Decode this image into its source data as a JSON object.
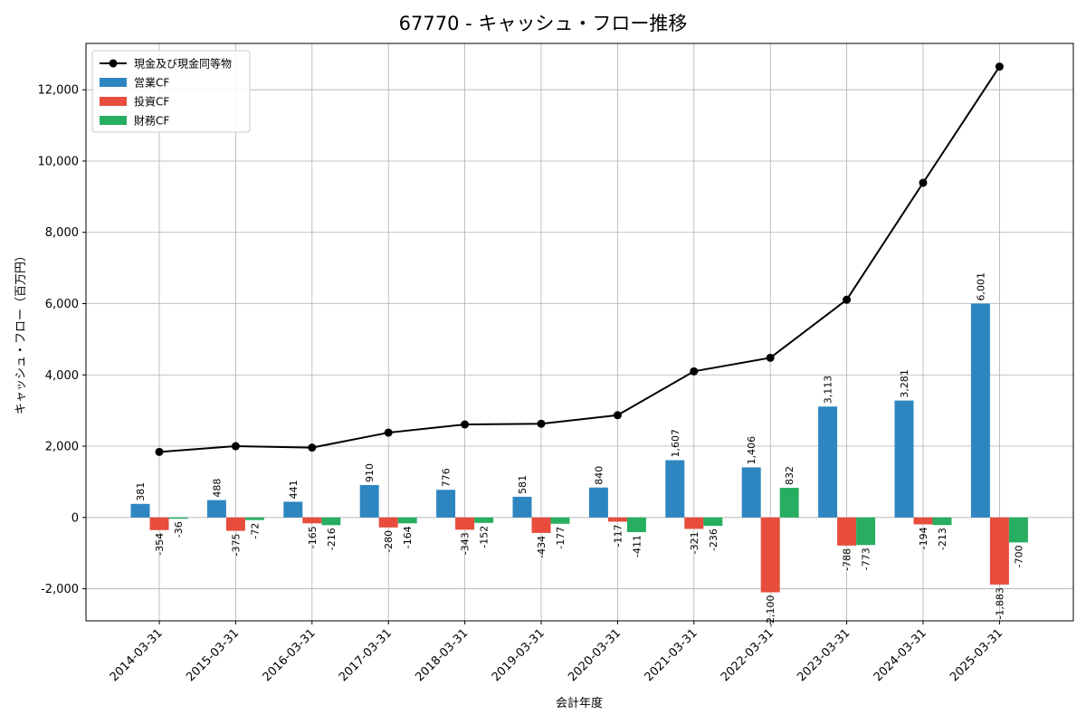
{
  "chart_data": {
    "type": "bar",
    "title": "67770 - キャッシュ・フロー推移",
    "xlabel": "会計年度",
    "ylabel": "キャッシュ・フロー（百万円）",
    "ylim": [
      -2900,
      13300
    ],
    "yticks": [
      -2000,
      0,
      2000,
      4000,
      6000,
      8000,
      10000,
      12000
    ],
    "ytick_labels": [
      "-2,000",
      "0",
      "2,000",
      "4,000",
      "6,000",
      "8,000",
      "10,000",
      "12,000"
    ],
    "grid": true,
    "legend_placement": "top-left",
    "categories": [
      "2014-03-31",
      "2015-03-31",
      "2016-03-31",
      "2017-03-31",
      "2018-03-31",
      "2019-03-31",
      "2020-03-31",
      "2021-03-31",
      "2022-03-31",
      "2023-03-31",
      "2024-03-31",
      "2025-03-31"
    ],
    "line_series": {
      "name": "現金及び現金同等物",
      "color": "#000000",
      "values": [
        1840,
        2000,
        1960,
        2380,
        2610,
        2630,
        2870,
        4100,
        4480,
        6110,
        9390,
        12650
      ]
    },
    "series": [
      {
        "name": "営業CF",
        "color": "#2e86c1",
        "values": [
          381,
          488,
          441,
          910,
          776,
          581,
          840,
          1607,
          1406,
          3113,
          3281,
          6001
        ],
        "labels": [
          "381",
          "488",
          "441",
          "910",
          "776",
          "581",
          "840",
          "1,607",
          "1,406",
          "3,113",
          "3,281",
          "6,001"
        ]
      },
      {
        "name": "投資CF",
        "color": "#e74c3c",
        "values": [
          -354,
          -375,
          -165,
          -280,
          -343,
          -434,
          -117,
          -321,
          -2100,
          -788,
          -194,
          -1883
        ],
        "labels": [
          "-354",
          "-375",
          "-165",
          "-280",
          "-343",
          "-434",
          "-117",
          "-321",
          "-2,100",
          "-788",
          "-194",
          "-1,883"
        ]
      },
      {
        "name": "財務CF",
        "color": "#27ae60",
        "values": [
          -36,
          -72,
          -216,
          -164,
          -152,
          -177,
          -411,
          -236,
          832,
          -773,
          -213,
          -700
        ],
        "labels": [
          "-36",
          "-72",
          "-216",
          "-164",
          "-152",
          "-177",
          "-411",
          "-236",
          "832",
          "-773",
          "-213",
          "-700"
        ]
      }
    ]
  }
}
